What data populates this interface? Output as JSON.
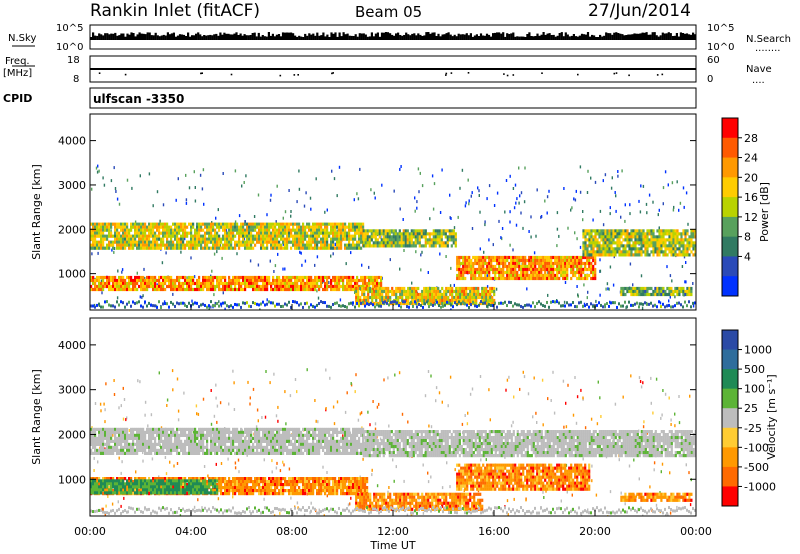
{
  "header": {
    "station": "Rankin Inlet (fitACF)",
    "beam": "Beam 05",
    "date": "27/Jun/2014"
  },
  "strip_labels": {
    "nsky": "N.Sky",
    "nsearch": "N.Search",
    "nsearch_dots": "........",
    "freq": "Freq.",
    "mhz": "[MHz]",
    "nave": "Nave",
    "nave_dots": "....",
    "cpid": "CPID",
    "cpid_value": "ulfscan -3350",
    "noise_ticks_left": [
      "10^5",
      "10^0"
    ],
    "noise_ticks_right": [
      "10^5",
      "10^0"
    ],
    "freq_ticks": [
      "18",
      "8"
    ],
    "nave_ticks": [
      "60",
      "0"
    ]
  },
  "chart_data": [
    {
      "type": "heatmap",
      "name": "power-panel",
      "ylabel": "Slant Range [km]",
      "xlabel": "",
      "yticks": [
        "4000",
        "3000",
        "2000",
        "1000"
      ],
      "ylim": [
        180,
        4600
      ],
      "colorbar_label": "Power [dB]",
      "colorbar_ticks": [
        "28",
        "24",
        "20",
        "16",
        "12",
        "8",
        "4"
      ],
      "colorbar_colors": [
        "#ff0000",
        "#ff5a00",
        "#ff9900",
        "#ffcc00",
        "#b9d300",
        "#58a15d",
        "#317a62",
        "#2a4ab8",
        "#0032ff"
      ],
      "bands": [
        {
          "x": [
            0.0,
            10.8
          ],
          "y": [
            1550,
            2150
          ],
          "level": 0.55
        },
        {
          "x": [
            10.8,
            14.5
          ],
          "y": [
            1600,
            2000
          ],
          "level": 0.45
        },
        {
          "x": [
            14.5,
            20.0
          ],
          "y": [
            900,
            1400
          ],
          "level": 0.75
        },
        {
          "x": [
            19.5,
            24.0
          ],
          "y": [
            1450,
            2000
          ],
          "level": 0.5
        },
        {
          "x": [
            0.0,
            11.5
          ],
          "y": [
            650,
            950
          ],
          "level": 0.75
        },
        {
          "x": [
            10.5,
            16.0
          ],
          "y": [
            350,
            700
          ],
          "level": 0.6
        },
        {
          "x": [
            21.0,
            23.8
          ],
          "y": [
            500,
            700
          ],
          "level": 0.4
        }
      ]
    },
    {
      "type": "heatmap",
      "name": "velocity-panel",
      "ylabel": "Slant Range [km]",
      "xlabel": "Time UT",
      "xticks": [
        "00:00",
        "04:00",
        "08:00",
        "12:00",
        "16:00",
        "20:00",
        "00:00"
      ],
      "xlim": [
        0,
        24
      ],
      "yticks": [
        "4000",
        "3000",
        "2000",
        "1000"
      ],
      "ylim": [
        180,
        4600
      ],
      "colorbar_label": "Velocity [m s⁻¹]",
      "colorbar_ticks": [
        "1000",
        "500",
        "100",
        "25",
        "-25",
        "-100",
        "-500",
        "-1000"
      ],
      "colorbar_colors": [
        "#2b4aa6",
        "#2f6d9c",
        "#1f8a55",
        "#5cb436",
        "#bdbdbd",
        "#ffcc33",
        "#ff9900",
        "#ff6a00",
        "#ff0000"
      ],
      "bands": [
        {
          "x": [
            0.0,
            10.8
          ],
          "y": [
            1550,
            2150
          ],
          "level": "ground"
        },
        {
          "x": [
            10.8,
            24.0
          ],
          "y": [
            1550,
            2100
          ],
          "level": "ground"
        },
        {
          "x": [
            0.0,
            11.0
          ],
          "y": [
            650,
            1050
          ],
          "level": "negative"
        },
        {
          "x": [
            14.5,
            19.8
          ],
          "y": [
            800,
            1350
          ],
          "level": "negative"
        },
        {
          "x": [
            10.5,
            15.5
          ],
          "y": [
            300,
            700
          ],
          "level": "negative"
        },
        {
          "x": [
            21.0,
            23.8
          ],
          "y": [
            500,
            700
          ],
          "level": "negative"
        },
        {
          "x": [
            0.0,
            5.0
          ],
          "y": [
            700,
            1000
          ],
          "level": "positive"
        }
      ]
    }
  ]
}
